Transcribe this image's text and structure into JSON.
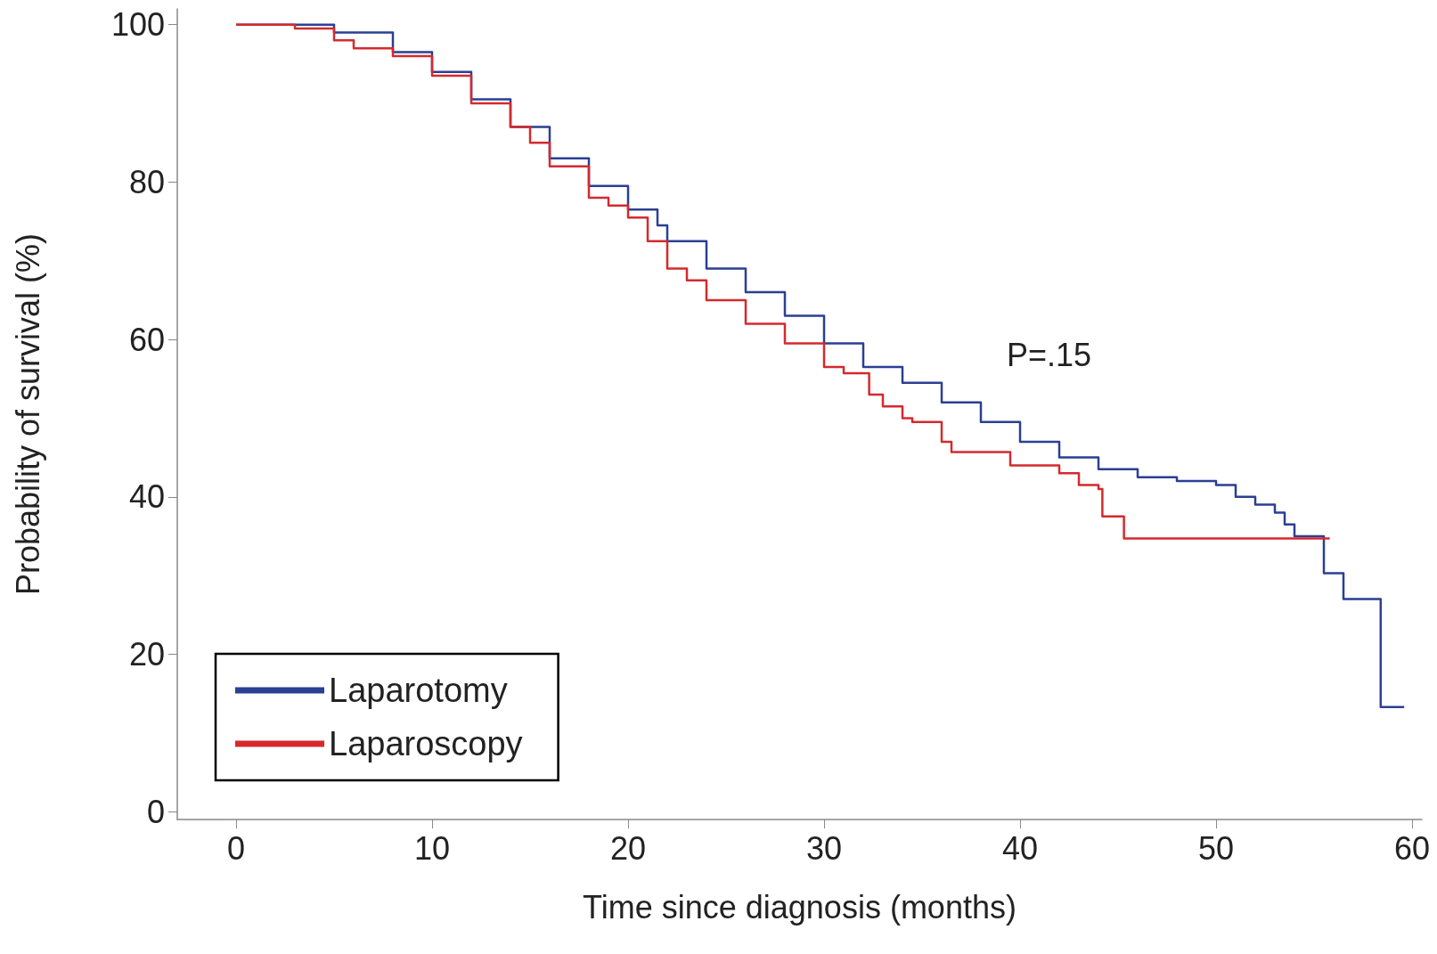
{
  "chart_data": {
    "type": "step",
    "xlabel": "Time since diagnosis (months)",
    "ylabel": "Probability of survival (%)",
    "xlim": [
      -3,
      60.5
    ],
    "xticks": [
      0,
      10,
      20,
      30,
      40,
      50,
      60
    ],
    "ylim": [
      -1,
      102
    ],
    "yticks": [
      0,
      20,
      40,
      60,
      80,
      100
    ],
    "grid": false,
    "legend": "bottom left",
    "marker": "none",
    "line_style": "solid",
    "annotations": [
      "P=.15"
    ],
    "series": [
      {
        "name": "Laparotomy",
        "color": "#2b3f93",
        "x": [
          0,
          5,
          8,
          10,
          12,
          14,
          16,
          18,
          20,
          21.5,
          22,
          24,
          26,
          28,
          30,
          32,
          34,
          36,
          38,
          40,
          42,
          44,
          46,
          48,
          50,
          51,
          52,
          53,
          53.5,
          54,
          55.5,
          56.5,
          58.4,
          59.6
        ],
        "values": [
          100,
          99,
          96.5,
          94,
          90.5,
          87,
          83,
          79.5,
          76.5,
          74.5,
          72.5,
          69,
          66,
          63,
          59.5,
          56.5,
          54.5,
          52,
          49.5,
          47,
          45,
          43.5,
          42.5,
          42,
          41.5,
          40,
          39,
          38,
          36.5,
          35,
          30.3,
          27,
          13.3,
          13.3
        ]
      },
      {
        "name": "Laparoscopy",
        "color": "#d42a2e",
        "x": [
          0,
          3,
          5,
          6,
          8,
          10,
          12,
          14,
          15,
          16,
          18,
          19,
          20,
          21,
          22,
          23,
          24,
          26,
          28,
          30,
          31,
          32.3,
          33,
          34,
          34.5,
          36,
          36.5,
          37,
          39.5,
          42,
          43,
          44,
          44.2,
          45.3,
          55.8
        ],
        "values": [
          100,
          99.5,
          98,
          97,
          96,
          93.5,
          90,
          87,
          85,
          82,
          78,
          77,
          75.5,
          72.5,
          69,
          67.5,
          65,
          62,
          59.5,
          56.5,
          55.7,
          53,
          51.5,
          50,
          49.5,
          47,
          45.7,
          45.7,
          44,
          43,
          41.5,
          41,
          37.5,
          34.7,
          34.7
        ]
      }
    ]
  }
}
